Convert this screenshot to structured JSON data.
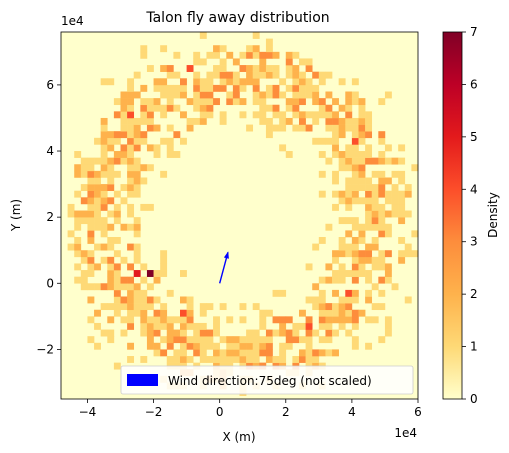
{
  "chart_data": {
    "type": "heatmap",
    "title": "Talon fly away distribution",
    "xlabel": "X (m)",
    "ylabel": "Y (m)",
    "x_offset_label": "1e4",
    "y_offset_label": "1e4",
    "xlim": [
      -4.8,
      6.0
    ],
    "ylim": [
      -3.5,
      7.6
    ],
    "x_ticks": [
      -4,
      -2,
      0,
      2,
      4,
      6
    ],
    "x_tick_labels": [
      "−4",
      "−2",
      "0",
      "2",
      "4",
      "6"
    ],
    "y_ticks": [
      -2,
      0,
      2,
      4,
      6
    ],
    "y_tick_labels": [
      "−2",
      "0",
      "2",
      "4",
      "6"
    ],
    "grid": false,
    "colorbar": {
      "label": "Density",
      "min": 0,
      "max": 7,
      "ticks": [
        0,
        1,
        2,
        3,
        4,
        5,
        6,
        7
      ],
      "tick_labels": [
        "0",
        "1",
        "2",
        "3",
        "4",
        "5",
        "6",
        "7"
      ],
      "colormap": [
        "#ffffcc",
        "#fed976",
        "#feb24c",
        "#fd8d3c",
        "#fc4e2a",
        "#e31a1c",
        "#bd0026",
        "#800026"
      ]
    },
    "density_ring": {
      "center": [
        0.6,
        2.0
      ],
      "inner_radius": 3.0,
      "outer_radius": 5.2,
      "peak_radius": 4.1,
      "typical_max": 3,
      "hotspots": [
        {
          "x": -2.3,
          "y": 0.2,
          "value": 7
        },
        {
          "x": -2.7,
          "y": 0.2,
          "value": 5
        },
        {
          "x": -2.8,
          "y": 5.0,
          "value": 4
        },
        {
          "x": 4.0,
          "y": 4.2,
          "value": 4
        },
        {
          "x": 3.8,
          "y": -0.4,
          "value": 4
        },
        {
          "x": 2.6,
          "y": -1.4,
          "value": 4
        },
        {
          "x": -1.3,
          "y": -1.0,
          "value": 4
        },
        {
          "x": -1.1,
          "y": 6.4,
          "value": 4
        },
        {
          "x": 1.1,
          "y": 6.8,
          "value": 3
        }
      ]
    },
    "wind_arrow": {
      "origin": [
        0,
        0
      ],
      "direction_deg": 75,
      "color": "#0000ff"
    },
    "legend": {
      "label": "Wind direction:75deg (not scaled)",
      "placement": "lower-right",
      "color": "#0000ff"
    }
  }
}
